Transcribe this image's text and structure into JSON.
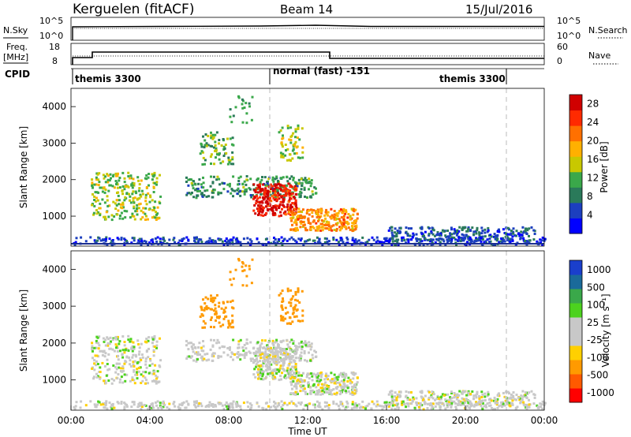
{
  "header": {
    "station": "Kerguelen (fitACF)",
    "beam": "Beam 14",
    "date": "15/Jul/2016"
  },
  "noise_panel": {
    "left_label": "N.Sky",
    "left_ticks": [
      "10^5",
      "10^0"
    ],
    "right_label": "N.Search",
    "right_ticks": [
      "10^5",
      "10^0"
    ]
  },
  "freq_panel": {
    "left_label_line1": "Freq.",
    "left_label_line2": "[MHz]",
    "left_ticks": [
      "18",
      "8"
    ],
    "right_label": "Nave",
    "right_ticks": [
      "60",
      "0"
    ]
  },
  "cpid": {
    "label": "CPID",
    "segments": [
      {
        "name": "themis 3300",
        "start_hour": 0
      },
      {
        "name": "normal (fast) -151",
        "start_hour": 10
      },
      {
        "name": "themis 3300",
        "start_hour": 22
      }
    ]
  },
  "colors": {
    "power_scale": [
      "#0000ff",
      "#1c3fbf",
      "#2a7a5a",
      "#3aa84a",
      "#c8c800",
      "#ffb000",
      "#ff7000",
      "#ff2a00",
      "#d00000"
    ],
    "velocity_scale": [
      "#ff0000",
      "#ff5a00",
      "#ff9a00",
      "#ffd000",
      "#c8c8c8",
      "#c8c8c8",
      "#4cd21e",
      "#3aa84a",
      "#1a6a9a",
      "#1a3fcc"
    ],
    "ground_scatter": "#c8c8c8"
  },
  "chart_data": [
    {
      "type": "heatmap",
      "name": "power",
      "xlabel": "",
      "ylabel": "Slant Range [km]",
      "xlim": [
        0,
        24
      ],
      "ylim": [
        180,
        4500
      ],
      "y_ticks": [
        1000,
        2000,
        3000,
        4000
      ],
      "colorbar": {
        "label": "Power [dB]",
        "ticks": [
          "4",
          "8",
          "12",
          "16",
          "20",
          "24",
          "28"
        ],
        "range": [
          0,
          30
        ]
      },
      "features": [
        {
          "region": "main arc",
          "x_range_hours": [
            5.8,
            12.4
          ],
          "range_km": [
            1500,
            2100
          ],
          "power_db": 10
        },
        {
          "region": "core",
          "x_range_hours": [
            9.2,
            11.4
          ],
          "range_km": [
            1000,
            1900
          ],
          "power_db": 27
        },
        {
          "region": "tail",
          "x_range_hours": [
            11.0,
            14.5
          ],
          "range_km": [
            600,
            1200
          ],
          "power_db": 20
        },
        {
          "region": "early",
          "x_range_hours": [
            1.0,
            4.5
          ],
          "range_km": [
            900,
            2200
          ],
          "power_db": 14
        },
        {
          "region": "late",
          "x_range_hours": [
            16.0,
            23.5
          ],
          "range_km": [
            300,
            700
          ],
          "power_db": 6
        }
      ]
    },
    {
      "type": "heatmap",
      "name": "velocity",
      "xlabel": "Time UT",
      "ylabel": "Slant Range [km]",
      "xlim": [
        0,
        24
      ],
      "ylim": [
        180,
        4500
      ],
      "x_ticks": [
        "00:00",
        "04:00",
        "08:00",
        "12:00",
        "16:00",
        "20:00",
        "00:00"
      ],
      "y_ticks": [
        1000,
        2000,
        3000,
        4000
      ],
      "colorbar": {
        "label": "Velocity [m s⁻¹]",
        "ticks": [
          "1000",
          "500",
          "100",
          "25",
          "-25",
          "-100",
          "-500",
          "-1000"
        ],
        "range": [
          -1000,
          1000
        ]
      },
      "features": [
        {
          "region": "ground scatter band",
          "x_range_hours": [
            5.5,
            12.8
          ],
          "range_km": [
            1450,
            2050
          ],
          "velocity_ms": 0
        },
        {
          "region": "early flows",
          "x_range_hours": [
            1.0,
            4.5
          ],
          "range_km": [
            800,
            2200
          ],
          "velocity_ms": -150
        },
        {
          "region": "late flows",
          "x_range_hours": [
            16.0,
            21.5
          ],
          "range_km": [
            300,
            700
          ],
          "velocity_ms": 80
        }
      ]
    }
  ]
}
